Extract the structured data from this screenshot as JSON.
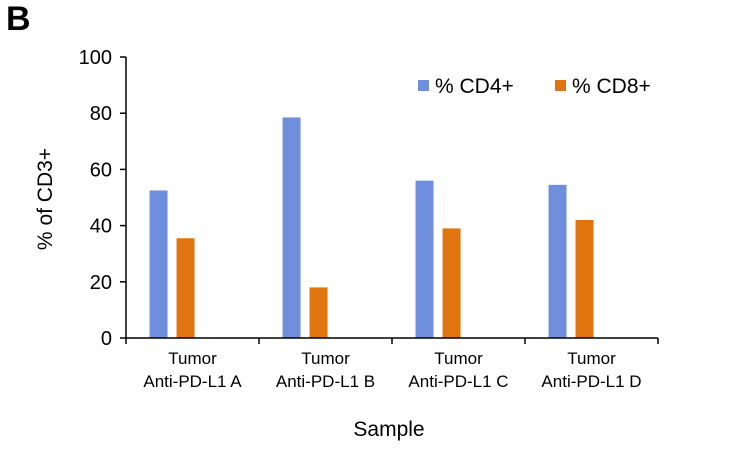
{
  "panel_label": "B",
  "chart_data": {
    "type": "bar",
    "categories": [
      [
        "Tumor",
        "Anti-PD-L1 A"
      ],
      [
        "Tumor",
        "Anti-PD-L1 B"
      ],
      [
        "Tumor",
        "Anti-PD-L1 C"
      ],
      [
        "Tumor",
        "Anti-PD-L1 D"
      ]
    ],
    "series": [
      {
        "name": "% CD4+",
        "values": [
          52.5,
          78.5,
          56,
          54.5
        ],
        "color": "#6f8fdc"
      },
      {
        "name": "% CD8+",
        "values": [
          35.5,
          18,
          39,
          42
        ],
        "color": "#e0740f"
      }
    ],
    "xlabel": "Sample",
    "ylabel": "% of CD3+",
    "ylim": [
      0,
      100
    ],
    "yticks": [
      "0",
      "20",
      "40",
      "60",
      "80",
      "100"
    ],
    "grid": false,
    "legend_position": "top-right"
  }
}
